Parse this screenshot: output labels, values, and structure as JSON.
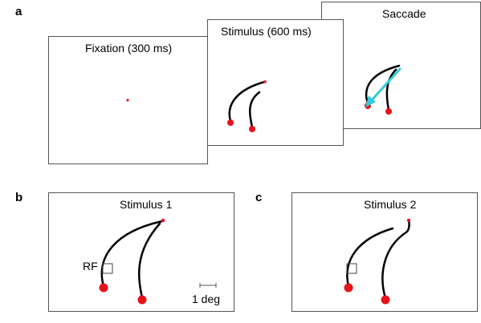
{
  "panels": {
    "a": {
      "letter": "a",
      "frames": [
        {
          "title": "Fixation (300 ms)"
        },
        {
          "title": "Stimulus (600 ms)"
        },
        {
          "title": "Saccade"
        }
      ]
    },
    "b": {
      "letter": "b",
      "title": "Stimulus 1",
      "rf_label": "RF",
      "scale_label": "1 deg"
    },
    "c": {
      "letter": "c",
      "title": "Stimulus 2"
    }
  },
  "colors": {
    "target": "#e8121b",
    "curve": "#000000",
    "saccade_arrow": "#33ccdd",
    "frame_border": "#555555"
  }
}
